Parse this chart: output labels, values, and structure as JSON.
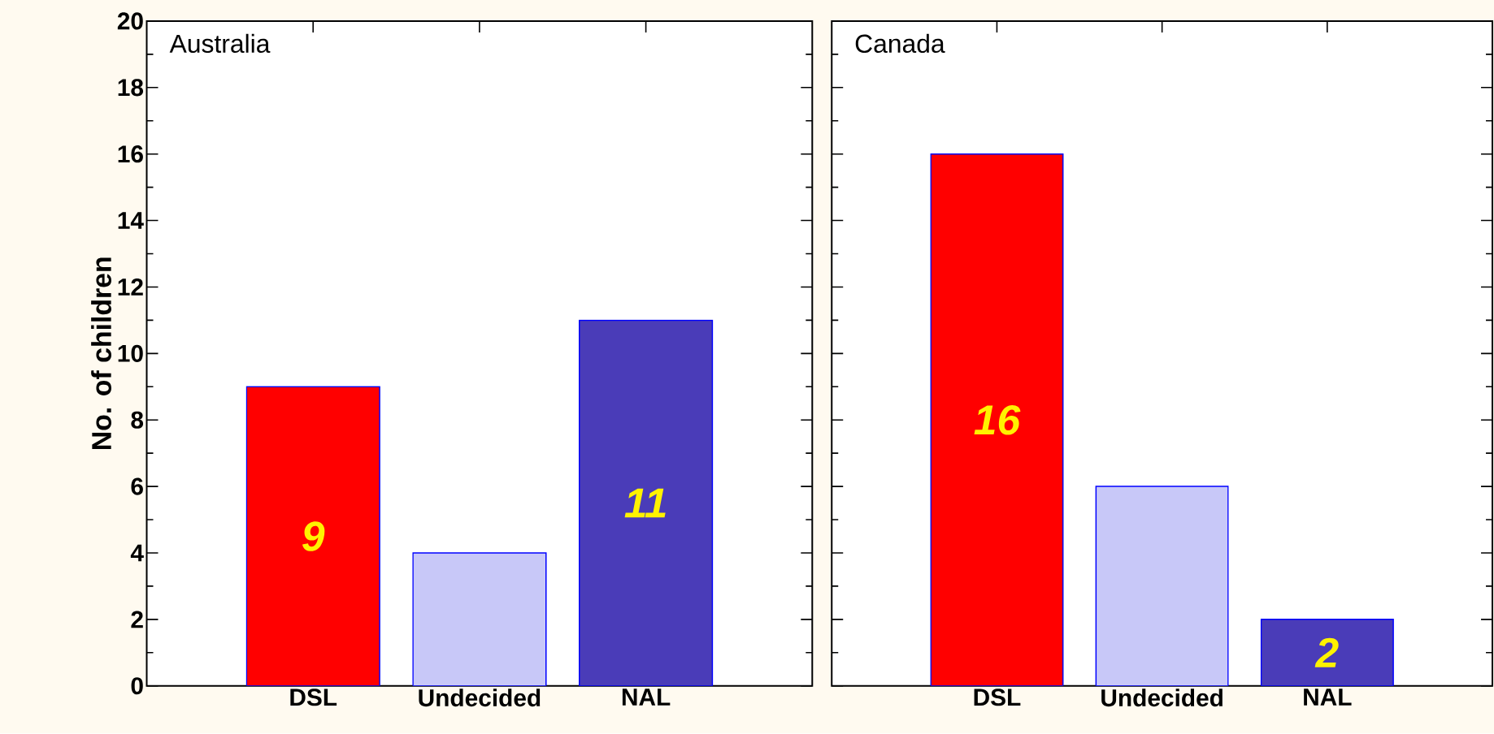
{
  "chart_data": [
    {
      "type": "bar",
      "title": "Australia",
      "ylabel": "No. of children",
      "categories": [
        "DSL",
        "Undecided",
        "NAL"
      ],
      "values": [
        9,
        4,
        11
      ],
      "colors": [
        "#ff0000",
        "#c8c8f8",
        "#4a3cb8"
      ],
      "value_labels": [
        "9",
        null,
        "11"
      ],
      "ylim": [
        0,
        20
      ],
      "yticks": [
        0,
        2,
        4,
        6,
        8,
        10,
        12,
        14,
        16,
        18,
        20
      ]
    },
    {
      "type": "bar",
      "title": "Canada",
      "categories": [
        "DSL",
        "Undecided",
        "NAL"
      ],
      "values": [
        16,
        6,
        2
      ],
      "colors": [
        "#ff0000",
        "#c8c8f8",
        "#4a3cb8"
      ],
      "value_labels": [
        "16",
        null,
        "2"
      ],
      "ylim": [
        0,
        20
      ],
      "yticks": [
        0,
        2,
        4,
        6,
        8,
        10,
        12,
        14,
        16,
        18,
        20
      ],
      "tick_labels": "x"
    }
  ]
}
